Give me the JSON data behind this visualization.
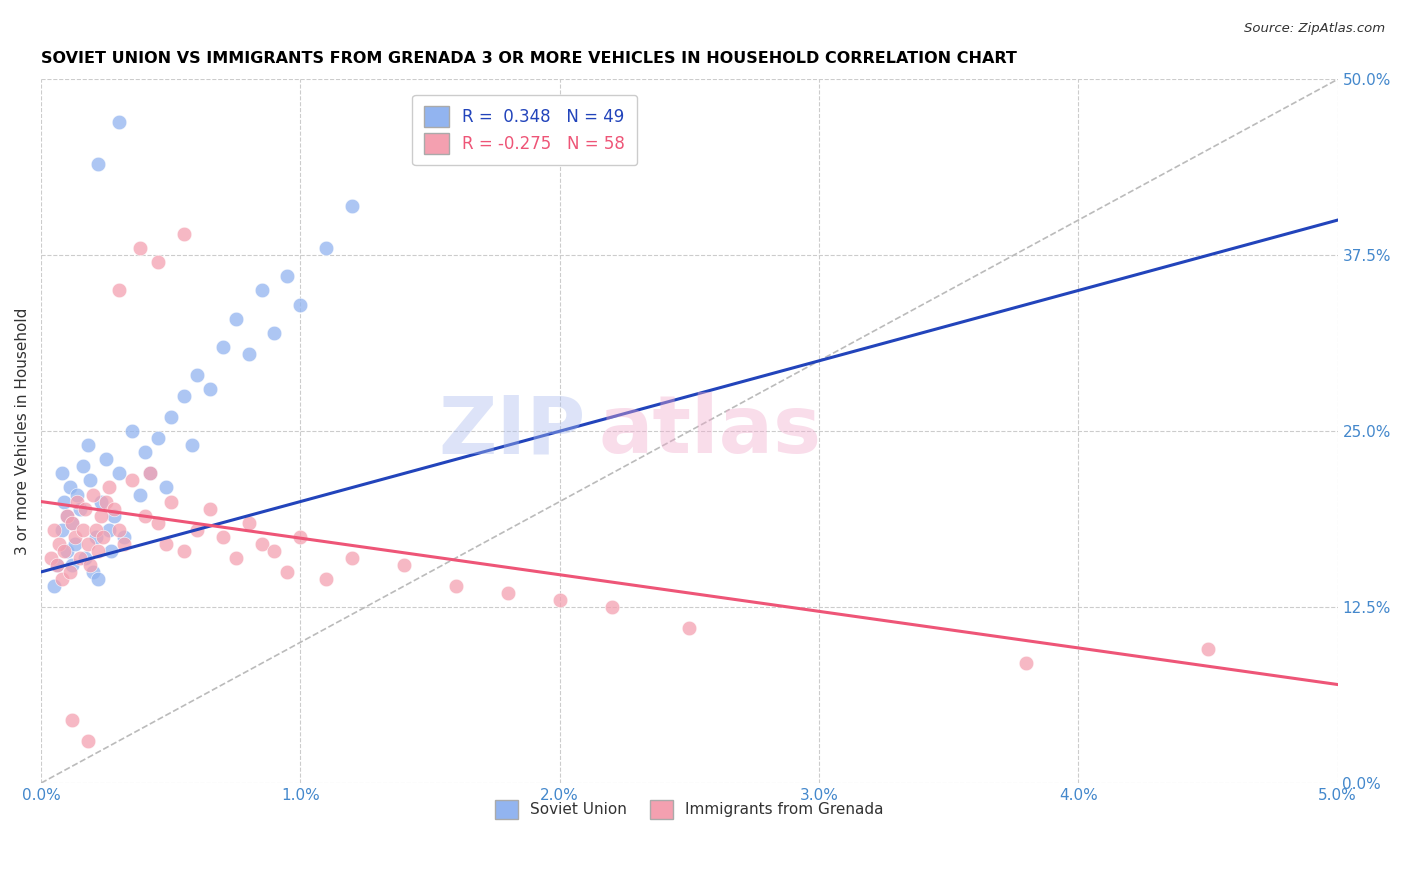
{
  "title": "SOVIET UNION VS IMMIGRANTS FROM GRENADA 3 OR MORE VEHICLES IN HOUSEHOLD CORRELATION CHART",
  "source": "Source: ZipAtlas.com",
  "ylabel": "3 or more Vehicles in Household",
  "x_min": 0.0,
  "x_max": 5.0,
  "y_min": 0.0,
  "y_max": 50.0,
  "y_ticks_right": [
    0.0,
    12.5,
    25.0,
    37.5,
    50.0
  ],
  "x_ticks": [
    0.0,
    1.0,
    2.0,
    3.0,
    4.0,
    5.0
  ],
  "blue_color": "#92B4F0",
  "pink_color": "#F4A0B0",
  "blue_line_color": "#2244BB",
  "pink_line_color": "#EE5577",
  "diag_line_color": "#BBBBBB",
  "legend_R_blue": "R =  0.348",
  "legend_N_blue": "N = 49",
  "legend_R_pink": "R = -0.275",
  "legend_N_pink": "N = 58",
  "legend_label_blue": "Soviet Union",
  "legend_label_pink": "Immigrants from Grenada",
  "watermark_zip_color": "#AABBEE",
  "watermark_atlas_color": "#F0AACC",
  "blue_x": [
    0.05,
    0.06,
    0.08,
    0.08,
    0.09,
    0.1,
    0.1,
    0.11,
    0.12,
    0.12,
    0.13,
    0.14,
    0.15,
    0.16,
    0.17,
    0.18,
    0.19,
    0.2,
    0.21,
    0.22,
    0.23,
    0.25,
    0.26,
    0.27,
    0.28,
    0.3,
    0.32,
    0.35,
    0.38,
    0.4,
    0.42,
    0.45,
    0.48,
    0.5,
    0.55,
    0.58,
    0.6,
    0.65,
    0.7,
    0.75,
    0.8,
    0.85,
    0.9,
    0.95,
    1.0,
    1.1,
    1.2,
    0.22,
    0.3
  ],
  "blue_y": [
    14.0,
    15.5,
    22.0,
    18.0,
    20.0,
    16.5,
    19.0,
    21.0,
    15.5,
    18.5,
    17.0,
    20.5,
    19.5,
    22.5,
    16.0,
    24.0,
    21.5,
    15.0,
    17.5,
    14.5,
    20.0,
    23.0,
    18.0,
    16.5,
    19.0,
    22.0,
    17.5,
    25.0,
    20.5,
    23.5,
    22.0,
    24.5,
    21.0,
    26.0,
    27.5,
    24.0,
    29.0,
    28.0,
    31.0,
    33.0,
    30.5,
    35.0,
    32.0,
    36.0,
    34.0,
    38.0,
    41.0,
    44.0,
    47.0
  ],
  "pink_x": [
    0.04,
    0.05,
    0.06,
    0.07,
    0.08,
    0.09,
    0.1,
    0.11,
    0.12,
    0.13,
    0.14,
    0.15,
    0.16,
    0.17,
    0.18,
    0.19,
    0.2,
    0.21,
    0.22,
    0.23,
    0.24,
    0.25,
    0.26,
    0.28,
    0.3,
    0.32,
    0.35,
    0.38,
    0.4,
    0.42,
    0.45,
    0.48,
    0.5,
    0.55,
    0.6,
    0.65,
    0.7,
    0.75,
    0.8,
    0.85,
    0.9,
    0.95,
    1.0,
    1.1,
    1.2,
    1.4,
    1.6,
    1.8,
    2.0,
    2.2,
    2.5,
    0.3,
    0.45,
    0.55,
    3.8,
    4.5,
    0.12,
    0.18
  ],
  "pink_y": [
    16.0,
    18.0,
    15.5,
    17.0,
    14.5,
    16.5,
    19.0,
    15.0,
    18.5,
    17.5,
    20.0,
    16.0,
    18.0,
    19.5,
    17.0,
    15.5,
    20.5,
    18.0,
    16.5,
    19.0,
    17.5,
    20.0,
    21.0,
    19.5,
    18.0,
    17.0,
    21.5,
    38.0,
    19.0,
    22.0,
    18.5,
    17.0,
    20.0,
    16.5,
    18.0,
    19.5,
    17.5,
    16.0,
    18.5,
    17.0,
    16.5,
    15.0,
    17.5,
    14.5,
    16.0,
    15.5,
    14.0,
    13.5,
    13.0,
    12.5,
    11.0,
    35.0,
    37.0,
    39.0,
    8.5,
    9.5,
    4.5,
    3.0
  ]
}
